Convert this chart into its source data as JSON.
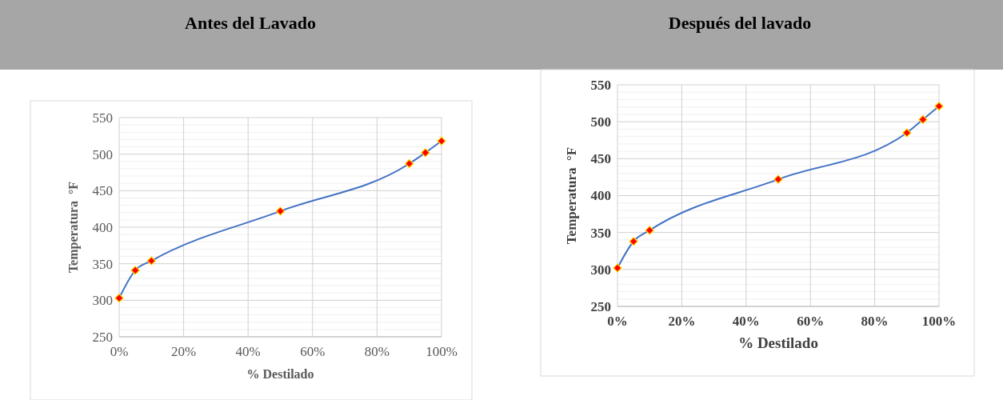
{
  "chart_data": [
    {
      "type": "line",
      "title": "Antes del Lavado",
      "xlabel": "% Destilado",
      "ylabel": "Temperatura  °F",
      "x": [
        0,
        5,
        10,
        50,
        90,
        95,
        100
      ],
      "series": [
        {
          "color": "#4472c4",
          "values": [
            303,
            341,
            354,
            422,
            487,
            502,
            518
          ]
        }
      ],
      "xlim": [
        0,
        100
      ],
      "xticks": [
        {
          "value": 0,
          "label": "0%"
        },
        {
          "value": 20,
          "label": "20%"
        },
        {
          "value": 40,
          "label": "40%"
        },
        {
          "value": 60,
          "label": "60%"
        },
        {
          "value": 80,
          "label": "80%"
        },
        {
          "value": 100,
          "label": "100%"
        }
      ],
      "ylim": [
        250,
        550
      ],
      "yticks": [
        250,
        300,
        350,
        400,
        450,
        500,
        550
      ],
      "grid": true,
      "marker": "diamond",
      "line_style": "solid"
    },
    {
      "type": "line",
      "title": "Después del lavado",
      "xlabel": "% Destilado",
      "ylabel": "Temperatura  °F",
      "x": [
        0,
        5,
        10,
        50,
        90,
        95,
        100
      ],
      "series": [
        {
          "color": "#4472c4",
          "values": [
            302,
            338,
            353,
            422,
            485,
            503,
            521
          ]
        }
      ],
      "xlim": [
        0,
        100
      ],
      "xticks": [
        {
          "value": 0,
          "label": "0%"
        },
        {
          "value": 20,
          "label": "20%"
        },
        {
          "value": 40,
          "label": "40%"
        },
        {
          "value": 60,
          "label": "60%"
        },
        {
          "value": 80,
          "label": "80%"
        },
        {
          "value": 100,
          "label": "100%"
        }
      ],
      "ylim": [
        250,
        550
      ],
      "yticks": [
        250,
        300,
        350,
        400,
        450,
        500,
        550
      ],
      "grid": true,
      "marker": "diamond",
      "line_style": "solid"
    }
  ]
}
